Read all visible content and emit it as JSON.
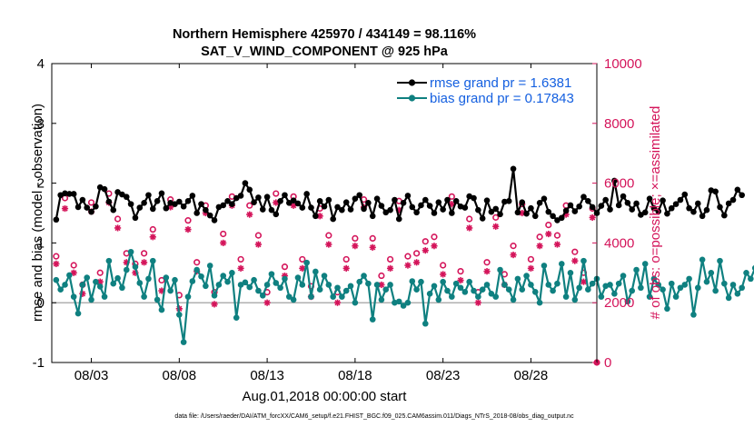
{
  "chart_data": {
    "type": "line",
    "title": "Northern Hemisphere 425970 / 434149 = 98.116%",
    "subtitle": "SAT_V_WIND_COMPONENT @ 925 hPa",
    "xlabel": "Aug.01,2018 00:00:00 start",
    "ylabel": "rmse and bias (model - observation)",
    "y2label": "# of obs: o=possible; ×=assimilated",
    "ylim": [
      -1,
      4
    ],
    "y2lim": [
      0,
      10000
    ],
    "xlim": [
      0.75,
      31.75
    ],
    "yticks": [
      "-1",
      "0",
      "1",
      "2",
      "3",
      "4"
    ],
    "y2ticks": [
      "0",
      "2000",
      "4000",
      "6000",
      "8000",
      "10000"
    ],
    "xticks": [
      {
        "x": 3,
        "label": "08/03"
      },
      {
        "x": 8,
        "label": "08/08"
      },
      {
        "x": 13,
        "label": "08/13"
      },
      {
        "x": 18,
        "label": "08/18"
      },
      {
        "x": 23,
        "label": "08/23"
      },
      {
        "x": 28,
        "label": "08/28"
      }
    ],
    "legend": {
      "placement": "top-right",
      "entries": [
        "rmse grand pr = 1.6381",
        "bias grand pr = 0.17843"
      ]
    },
    "colors": {
      "rmse": "#000000",
      "bias": "#0f8080",
      "obs": "#d4145a",
      "zero": "#b0b0b0"
    },
    "x_start": 1.0,
    "x_step": 0.25,
    "series": [
      {
        "name": "rmse",
        "axis": "left",
        "values": [
          1.39,
          1.8,
          1.83,
          1.82,
          1.82,
          1.6,
          1.72,
          1.59,
          1.52,
          1.61,
          1.93,
          1.9,
          1.69,
          1.55,
          1.85,
          1.81,
          1.77,
          1.65,
          1.42,
          1.59,
          1.67,
          1.8,
          1.57,
          1.7,
          1.83,
          1.58,
          1.67,
          1.65,
          1.69,
          1.61,
          1.7,
          1.79,
          1.5,
          1.65,
          1.55,
          1.46,
          1.38,
          1.6,
          1.63,
          1.7,
          1.65,
          1.75,
          1.79,
          2.0,
          1.89,
          1.68,
          1.76,
          1.56,
          1.77,
          1.55,
          1.48,
          1.7,
          1.8,
          1.67,
          1.71,
          1.66,
          1.59,
          1.82,
          1.59,
          1.45,
          1.7,
          1.61,
          1.72,
          1.4,
          1.6,
          1.55,
          1.68,
          1.56,
          1.74,
          1.8,
          1.57,
          1.67,
          1.45,
          1.74,
          1.62,
          1.51,
          1.55,
          1.72,
          1.4,
          1.67,
          1.79,
          1.6,
          1.51,
          1.63,
          1.72,
          1.62,
          1.5,
          1.68,
          1.56,
          1.72,
          1.5,
          1.7,
          1.61,
          1.59,
          1.78,
          1.75,
          1.55,
          1.41,
          1.71,
          1.52,
          1.57,
          1.48,
          1.69,
          1.7,
          2.24,
          1.51,
          1.68,
          1.49,
          1.58,
          1.45,
          1.67,
          1.74,
          1.52,
          1.45,
          1.38,
          1.42,
          1.54,
          1.63,
          1.53,
          1.61,
          1.77,
          1.7,
          1.6,
          1.5,
          1.62,
          1.72,
          1.56,
          2.04,
          1.63,
          1.78,
          1.67,
          1.56,
          1.66,
          1.47,
          1.51,
          1.74,
          1.58,
          1.53,
          1.71,
          1.49,
          1.58,
          1.65,
          1.72,
          1.81,
          1.58,
          1.52,
          1.66,
          1.45,
          1.55,
          1.88,
          1.86,
          1.6,
          1.46,
          1.66,
          1.72,
          1.89,
          1.8
        ]
      },
      {
        "name": "bias",
        "axis": "left",
        "values": [
          0.38,
          0.22,
          0.3,
          0.46,
          0.1,
          -0.18,
          0.3,
          0.42,
          0.05,
          0.35,
          0.27,
          0.1,
          0.7,
          0.32,
          0.41,
          0.25,
          0.55,
          0.85,
          0.6,
          0.33,
          0.1,
          0.4,
          0.7,
          0.05,
          -0.12,
          0.42,
          0.2,
          0.38,
          -0.2,
          -0.66,
          0.1,
          0.36,
          0.55,
          0.44,
          0.28,
          0.62,
          0.12,
          0.3,
          0.45,
          0.35,
          0.5,
          -0.25,
          0.3,
          0.34,
          0.26,
          0.38,
          0.2,
          0.12,
          0.3,
          0.48,
          0.33,
          0.25,
          0.4,
          0.1,
          0.05,
          0.42,
          0.3,
          0.67,
          0.1,
          0.52,
          0.22,
          0.45,
          0.3,
          0.1,
          0.25,
          0.1,
          0.2,
          0.28,
          0.0,
          0.35,
          0.45,
          0.32,
          -0.28,
          0.3,
          0.05,
          0.22,
          0.3,
          0.0,
          0.02,
          -0.05,
          0.0,
          0.36,
          0.22,
          0.35,
          -0.35,
          0.15,
          0.28,
          0.05,
          0.35,
          0.2,
          0.1,
          0.32,
          0.25,
          0.18,
          0.35,
          0.2,
          0.1,
          0.22,
          0.3,
          0.15,
          0.1,
          0.55,
          0.3,
          0.22,
          0.05,
          0.4,
          0.22,
          0.45,
          0.3,
          0.18,
          0.0,
          0.62,
          0.3,
          0.2,
          0.32,
          0.65,
          0.1,
          0.5,
          0.05,
          0.25,
          0.7,
          0.22,
          0.32,
          0.4,
          0.1,
          0.28,
          0.3,
          0.15,
          0.32,
          0.45,
          0.02,
          0.2,
          0.55,
          0.25,
          0.65,
          0.1,
          0.4,
          0.3,
          0.22,
          -0.1,
          0.32,
          0.1,
          0.25,
          0.3,
          0.4,
          -0.2,
          0.25,
          0.72,
          0.35,
          0.5,
          0.2,
          0.7,
          0.32,
          0.08,
          0.3,
          0.15,
          0.25,
          0.5,
          0.4,
          0.58,
          0.45
        ]
      },
      {
        "name": "possible",
        "axis": "right",
        "marker": "circle",
        "x_start": 1.0,
        "x_step": 0.5,
        "values": [
          3400,
          5350,
          3100,
          2450,
          5200,
          2850,
          5500,
          4650,
          3500,
          3150,
          3500,
          4300,
          2600,
          5300,
          2100,
          4600,
          3200,
          5100,
          2200,
          4150,
          5400,
          3300,
          5100,
          4100,
          2200,
          5500,
          3050,
          5400,
          3300,
          2400,
          5000,
          4100,
          2200,
          3300,
          4000,
          5300,
          4000,
          2750,
          3300,
          5250,
          3400,
          3500,
          3900,
          4050,
          3100,
          5400,
          2900,
          4650,
          2200,
          3200,
          4700,
          2800,
          3750,
          5150,
          3300,
          4050,
          4450,
          4100,
          5100,
          3550,
          2850,
          5000
        ]
      },
      {
        "name": "assimilated",
        "axis": "right",
        "marker": "asterisk",
        "x_start": 1.0,
        "x_step": 0.5,
        "values": [
          3300,
          5150,
          3000,
          2300,
          5050,
          2700,
          5350,
          4500,
          3350,
          3000,
          3350,
          4200,
          2400,
          5200,
          1800,
          4450,
          3050,
          5000,
          1950,
          4000,
          5250,
          3150,
          4950,
          3950,
          2000,
          5350,
          2900,
          5250,
          3150,
          2200,
          4900,
          3950,
          2000,
          3150,
          3900,
          5200,
          3850,
          2600,
          3150,
          5100,
          3250,
          3350,
          3750,
          3900,
          2950,
          5300,
          2750,
          4500,
          2000,
          3050,
          4550,
          2600,
          3600,
          5000,
          3150,
          3900,
          4300,
          3950,
          4950,
          3400,
          2700,
          4850
        ]
      }
    ]
  },
  "footnote": "data file: /Users/raeder/DAI/ATM_forcXX/CAM6_setup/f.e21.FHIST_BGC.f09_025.CAM6assim.011/Diags_NTrS_2018-08/obs_diag_output.nc",
  "extra_point": {
    "x": 31.75,
    "value": 0
  }
}
